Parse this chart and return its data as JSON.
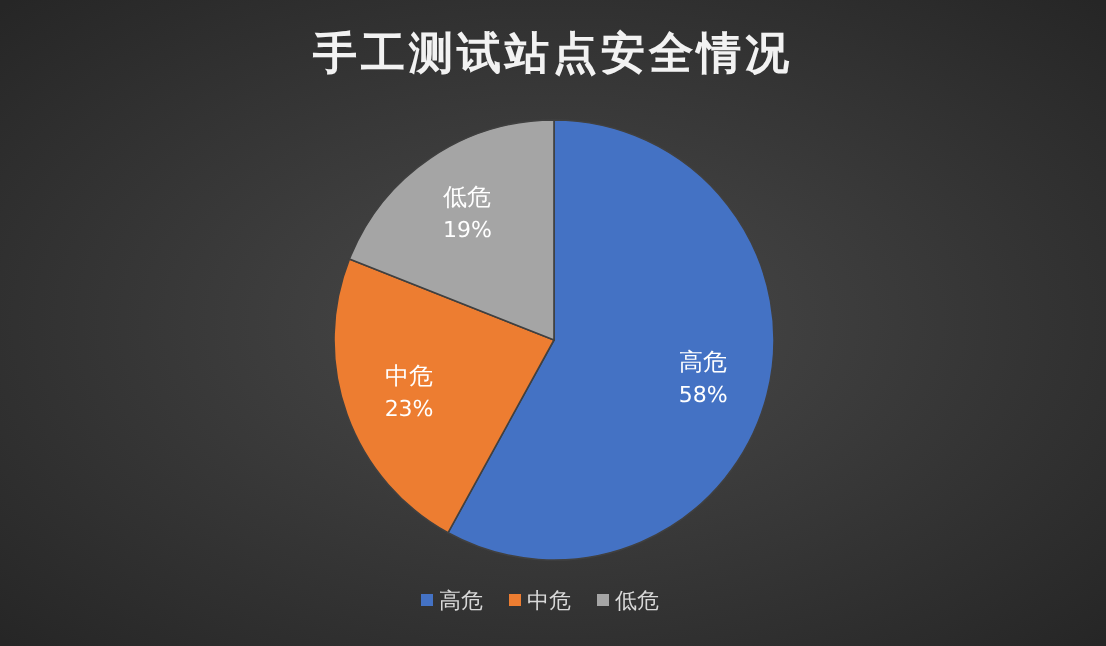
{
  "chart_data": {
    "type": "pie",
    "title": "手工测试站点安全情况",
    "categories": [
      "高危",
      "中危",
      "低危"
    ],
    "values": [
      58,
      23,
      19
    ],
    "colors": [
      "#4472c4",
      "#ed7d31",
      "#a5a5a5"
    ],
    "value_labels": [
      "58%",
      "23%",
      "19%"
    ],
    "legend": "bottom"
  }
}
